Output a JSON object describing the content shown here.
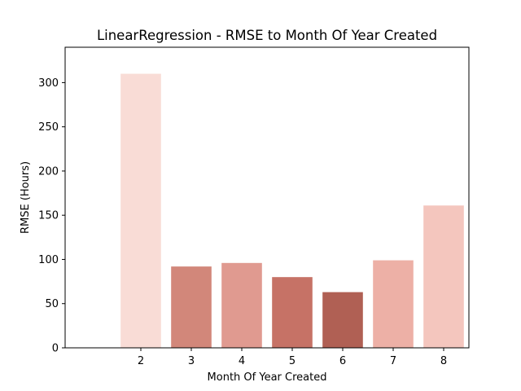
{
  "chart_data": {
    "type": "bar",
    "title": "LinearRegression - RMSE to Month Of Year Created",
    "xlabel": "Month Of Year Created",
    "ylabel": "RMSE (Hours)",
    "categories": [
      "2",
      "3",
      "4",
      "5",
      "6",
      "7",
      "8"
    ],
    "values": [
      310,
      92,
      96,
      80,
      63,
      99,
      161
    ],
    "bar_colors": [
      "#f9dcd6",
      "#d2877a",
      "#e09a90",
      "#c67266",
      "#b06054",
      "#edb0a6",
      "#f4c6be"
    ],
    "ylim": [
      0,
      340
    ],
    "yticks": [
      0,
      50,
      100,
      150,
      200,
      250,
      300
    ],
    "grid": false,
    "legend": "none"
  }
}
